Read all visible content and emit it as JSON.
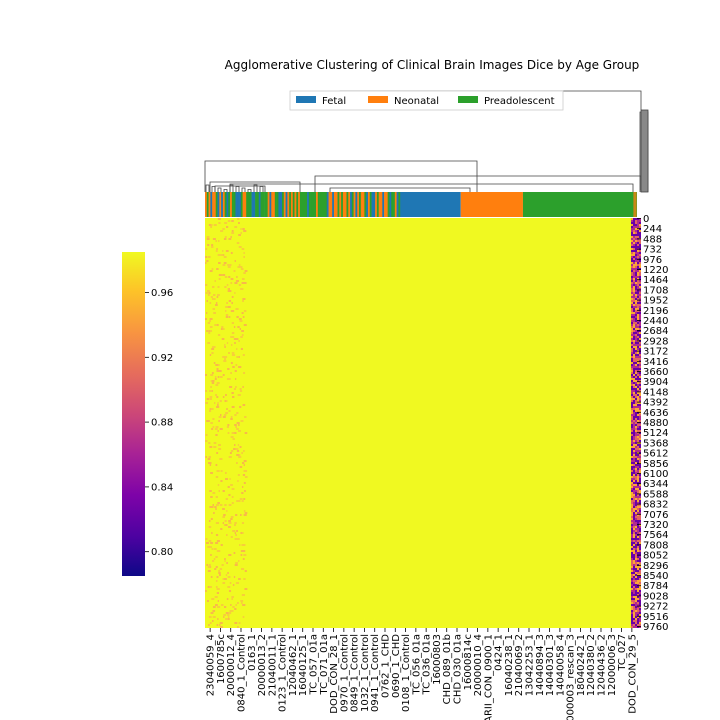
{
  "chart_data": {
    "type": "heatmap",
    "title": "Agglomerative Clustering of Clinical Brain Images Dice by Age Group",
    "xlabel": "",
    "ylabel": "",
    "colormap": "plasma",
    "colorbar": {
      "ticks": [
        0.8,
        0.84,
        0.88,
        0.92,
        0.96
      ],
      "tick_labels": [
        "0.80",
        "0.84",
        "0.88",
        "0.92",
        "0.96"
      ],
      "range": [
        0.785,
        0.985
      ]
    },
    "legend": {
      "placement": "top-center",
      "entries": [
        {
          "name": "Fetal",
          "color": "#1f77b4"
        },
        {
          "name": "Neonatal",
          "color": "#ff7f0e"
        },
        {
          "name": "Preadolescent",
          "color": "#2ca02c"
        }
      ]
    },
    "row_tick_labels": [
      "0",
      "244",
      "488",
      "732",
      "976",
      "1220",
      "1464",
      "1708",
      "1952",
      "2196",
      "2440",
      "2684",
      "2928",
      "3172",
      "3416",
      "3660",
      "3904",
      "4148",
      "4392",
      "4636",
      "4880",
      "5124",
      "5368",
      "5612",
      "5856",
      "6100",
      "6344",
      "6588",
      "6832",
      "7076",
      "7320",
      "7564",
      "7808",
      "8052",
      "8296",
      "8540",
      "8784",
      "9028",
      "9272",
      "9516",
      "9760"
    ],
    "column_tick_labels": [
      "23040059_4",
      "1600785c",
      "20000012_4",
      "0840_1_Control",
      "0163_1",
      "20000013_2",
      "21040011_1",
      "0123_1_Control",
      "12040462_1",
      "16040125_1",
      "TC_057_01a",
      "TC_071_01a",
      "DOD_CON_28_1",
      "0970_1_Control",
      "0849_1_Control",
      "1032_1_Control",
      "0941_1_Control",
      "0762_1_CHD",
      "0690_1_CHD",
      "0108_1_Control",
      "TC_056_01a",
      "TC_036_01a",
      "16000803",
      "CHD_089_01b",
      "CHD_030_01a",
      "16000814c",
      "20000010_4",
      "PARII_CON_0900_1",
      "0424_1",
      "16040238_1",
      "21040069_2",
      "13042253_1",
      "14040894_3",
      "14040301_3",
      "14040058_4",
      "10000003_rescan_3",
      "18040242_1",
      "12040380_2",
      "12040436_2",
      "12000006_3",
      "TC_027",
      "DOD_CON_29_5"
    ],
    "column_group_sequence": [
      {
        "group": "mixed",
        "fraction": 0.456
      },
      {
        "group": "Fetal",
        "fraction": 0.136
      },
      {
        "group": "Neonatal",
        "fraction": 0.144
      },
      {
        "group": "Preadolescent",
        "fraction": 0.264
      }
    ]
  }
}
